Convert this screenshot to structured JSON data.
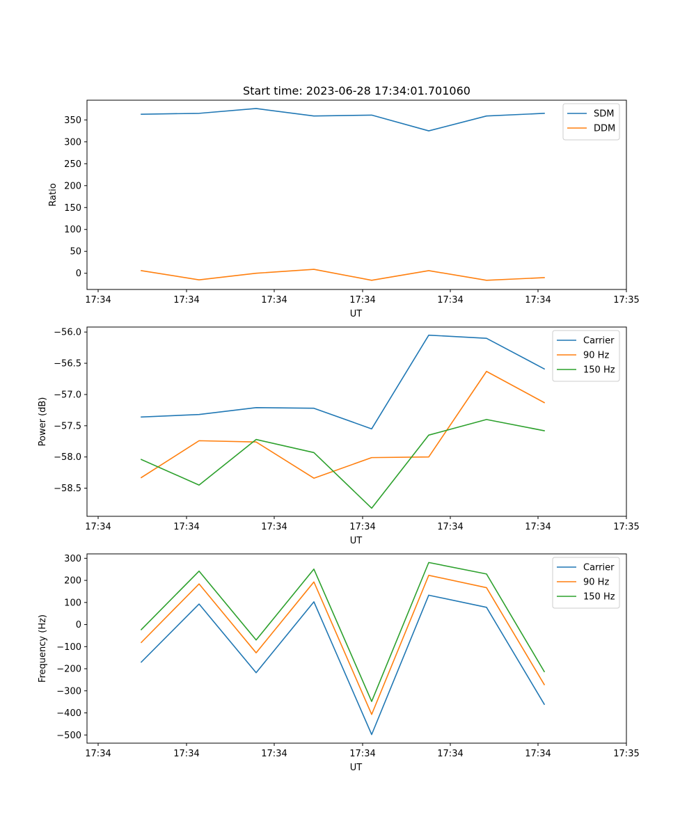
{
  "colors": {
    "blue": "#1f77b4",
    "orange": "#ff7f0e",
    "green": "#2ca02c",
    "legend_edge": "#cccccc"
  },
  "chart_data": [
    {
      "type": "line",
      "title": "Start time: 2023-06-28 17:34:01.701060",
      "xlabel": "UT",
      "ylabel": "Ratio",
      "x_tick_labels": [
        "17:34",
        "17:34",
        "17:34",
        "17:34",
        "17:34",
        "17:34",
        "17:34",
        "17:35"
      ],
      "y_ticks": [
        0,
        50,
        100,
        150,
        200,
        250,
        300,
        350
      ],
      "ylim": [
        -37,
        395
      ],
      "grid": false,
      "legend": "upper right",
      "series": [
        {
          "name": "SDM",
          "color": "#1f77b4",
          "values": [
            363,
            365,
            376,
            359,
            361,
            325,
            359,
            365
          ]
        },
        {
          "name": "DDM",
          "color": "#ff7f0e",
          "values": [
            6,
            -15,
            0,
            9,
            -16,
            6,
            -16,
            -10
          ]
        }
      ]
    },
    {
      "type": "line",
      "xlabel": "UT",
      "ylabel": "Power (dB)",
      "x_tick_labels": [
        "17:34",
        "17:34",
        "17:34",
        "17:34",
        "17:34",
        "17:34",
        "17:34",
        "17:35"
      ],
      "y_ticks": [
        -58.5,
        -58.0,
        -57.5,
        -57.0,
        -56.5,
        -56.0
      ],
      "y_tick_labels": [
        "−58.5",
        "−58.0",
        "−57.5",
        "−57.0",
        "−56.5",
        "−56.0"
      ],
      "ylim": [
        -58.95,
        -55.92
      ],
      "grid": false,
      "legend": "upper right",
      "series": [
        {
          "name": "Carrier",
          "color": "#1f77b4",
          "values": [
            -57.36,
            -57.32,
            -57.21,
            -57.22,
            -57.55,
            -56.05,
            -56.1,
            -56.59
          ]
        },
        {
          "name": "90 Hz",
          "color": "#ff7f0e",
          "values": [
            -58.33,
            -57.74,
            -57.76,
            -58.34,
            -58.01,
            -58.0,
            -56.63,
            -57.13
          ]
        },
        {
          "name": "150 Hz",
          "color": "#2ca02c",
          "values": [
            -58.04,
            -58.45,
            -57.72,
            -57.93,
            -58.82,
            -57.65,
            -57.4,
            -57.58
          ]
        }
      ]
    },
    {
      "type": "line",
      "xlabel": "UT",
      "ylabel": "Frequency (Hz)",
      "x_tick_labels": [
        "17:34",
        "17:34",
        "17:34",
        "17:34",
        "17:34",
        "17:34",
        "17:34",
        "17:35"
      ],
      "y_ticks": [
        -500,
        -400,
        -300,
        -200,
        -100,
        0,
        100,
        200,
        300
      ],
      "y_tick_labels": [
        "−500",
        "−400",
        "−300",
        "−200",
        "−100",
        "0",
        "100",
        "200",
        "300"
      ],
      "ylim": [
        -537,
        320
      ],
      "grid": false,
      "legend": "upper right",
      "series": [
        {
          "name": "Carrier",
          "color": "#1f77b4",
          "values": [
            -170,
            93,
            -218,
            103,
            -498,
            133,
            78,
            -361
          ]
        },
        {
          "name": "90 Hz",
          "color": "#ff7f0e",
          "values": [
            -81,
            184,
            -128,
            193,
            -407,
            223,
            167,
            -272
          ]
        },
        {
          "name": "150 Hz",
          "color": "#2ca02c",
          "values": [
            -23,
            242,
            -70,
            251,
            -348,
            281,
            229,
            -213
          ]
        }
      ]
    }
  ]
}
